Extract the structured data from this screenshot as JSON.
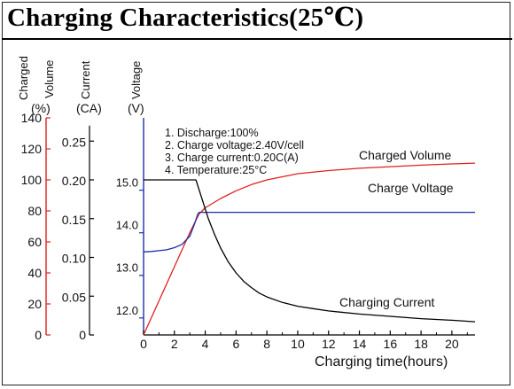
{
  "title": "Charging Characteristics(25℃)",
  "axis_headers": {
    "volume_l1": "Charged",
    "volume_l2": "Volume",
    "volume_unit": "(%)",
    "current_l1": "Current",
    "current_unit": "(CA)",
    "voltage_l1": "Voltage",
    "voltage_unit": "(V)"
  },
  "notes": [
    "1. Discharge:100%",
    "2. Charge voltage:2.40V/cell",
    "3. Charge current:0.20C(A)",
    "4. Temperature:25°C"
  ],
  "colors": {
    "volume": "#e02020",
    "voltage": "#1c2fa8",
    "current": "#000000",
    "axis_red": "#e02020",
    "axis_blue": "#1c2fa8"
  },
  "chart_data": {
    "type": "line",
    "title": "Charging Characteristics(25℃)",
    "xlabel": "Charging time(hours)",
    "xlim": [
      0,
      21.5
    ],
    "x_ticks": [
      0,
      2,
      4,
      6,
      8,
      10,
      12,
      14,
      16,
      18,
      20
    ],
    "axes": {
      "volume": {
        "label": "Charged Volume (%)",
        "range": [
          0,
          140
        ],
        "ticks": [
          0,
          20,
          40,
          60,
          80,
          100,
          120,
          140
        ]
      },
      "current": {
        "label": "Current (CA)",
        "range": [
          0,
          0.28
        ],
        "ticks": [
          0,
          0.05,
          0.1,
          0.15,
          0.2,
          0.25
        ],
        "tick_labels": [
          "0",
          "0.05",
          "0.10",
          "0.15",
          "0.20",
          "0.25"
        ]
      },
      "voltage": {
        "label": "Voltage (V)",
        "range": [
          11.6,
          16.7
        ],
        "ticks": [
          12.0,
          13.0,
          14.0,
          15.0
        ],
        "tick_labels": [
          "12.0",
          "13.0",
          "14.0",
          "15.0"
        ]
      }
    },
    "grid": false,
    "series": [
      {
        "name": "Charged Volume",
        "axis": "volume",
        "color": "#e02020",
        "x": [
          0,
          1,
          2,
          3,
          3.6,
          4,
          5,
          6,
          7,
          8,
          9,
          10,
          12,
          14,
          16,
          18,
          20,
          21.5
        ],
        "y": [
          0,
          22,
          44,
          66,
          78,
          82,
          88,
          93,
          97,
          100,
          102,
          104,
          106,
          107.5,
          108.5,
          109.5,
          110.3,
          110.8
        ]
      },
      {
        "name": "Charge Voltage",
        "axis": "voltage",
        "color": "#1c2fa8",
        "x": [
          0,
          0.5,
          1,
          1.5,
          2,
          2.5,
          3,
          3.3,
          3.5,
          3.6,
          5,
          10,
          15,
          21.5
        ],
        "y": [
          13.55,
          13.56,
          13.58,
          13.6,
          13.65,
          13.73,
          13.92,
          14.2,
          14.42,
          14.48,
          14.48,
          14.48,
          14.48,
          14.48
        ]
      },
      {
        "name": "Charging Current",
        "axis": "current",
        "color": "#000000",
        "x": [
          0,
          2,
          3.4,
          3.8,
          4.2,
          4.6,
          5,
          5.5,
          6,
          6.5,
          7,
          7.5,
          8,
          9,
          10,
          11,
          12,
          14,
          16,
          18,
          20,
          21.5
        ],
        "y": [
          0.2,
          0.2,
          0.2,
          0.175,
          0.15,
          0.13,
          0.112,
          0.094,
          0.08,
          0.069,
          0.061,
          0.054,
          0.049,
          0.042,
          0.037,
          0.034,
          0.031,
          0.027,
          0.024,
          0.021,
          0.019,
          0.017
        ]
      }
    ]
  }
}
